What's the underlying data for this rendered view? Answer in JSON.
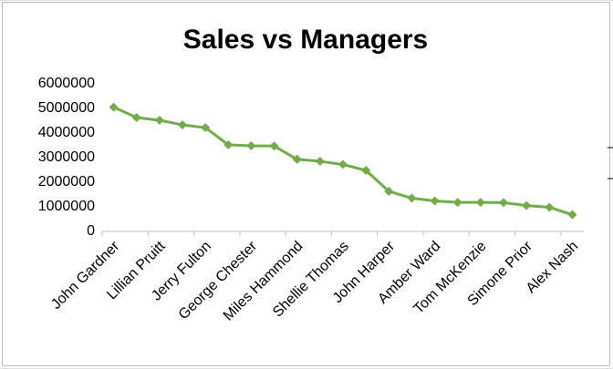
{
  "chart_data": {
    "type": "line",
    "title": "Sales vs Managers",
    "categories": [
      "John Gardner",
      null,
      "Lillian Pruitt",
      null,
      "Jerry Fulton",
      null,
      "George Chester",
      null,
      "Miles Hammond",
      null,
      "Shellie Thomas",
      null,
      "John Harper",
      null,
      "Amber Ward",
      null,
      "Tom McKenzie",
      null,
      "Simone Prior",
      null,
      "Alex Nash"
    ],
    "values": [
      5050000,
      4630000,
      4520000,
      4330000,
      4220000,
      3520000,
      3480000,
      3470000,
      2930000,
      2850000,
      2720000,
      2480000,
      1630000,
      1350000,
      1240000,
      1180000,
      1180000,
      1170000,
      1050000,
      980000,
      680000
    ],
    "color": "#70ad47",
    "ylim": [
      0,
      6000000
    ],
    "yticks": [
      0,
      1000000,
      2000000,
      3000000,
      4000000,
      5000000,
      6000000
    ],
    "grid": false
  }
}
